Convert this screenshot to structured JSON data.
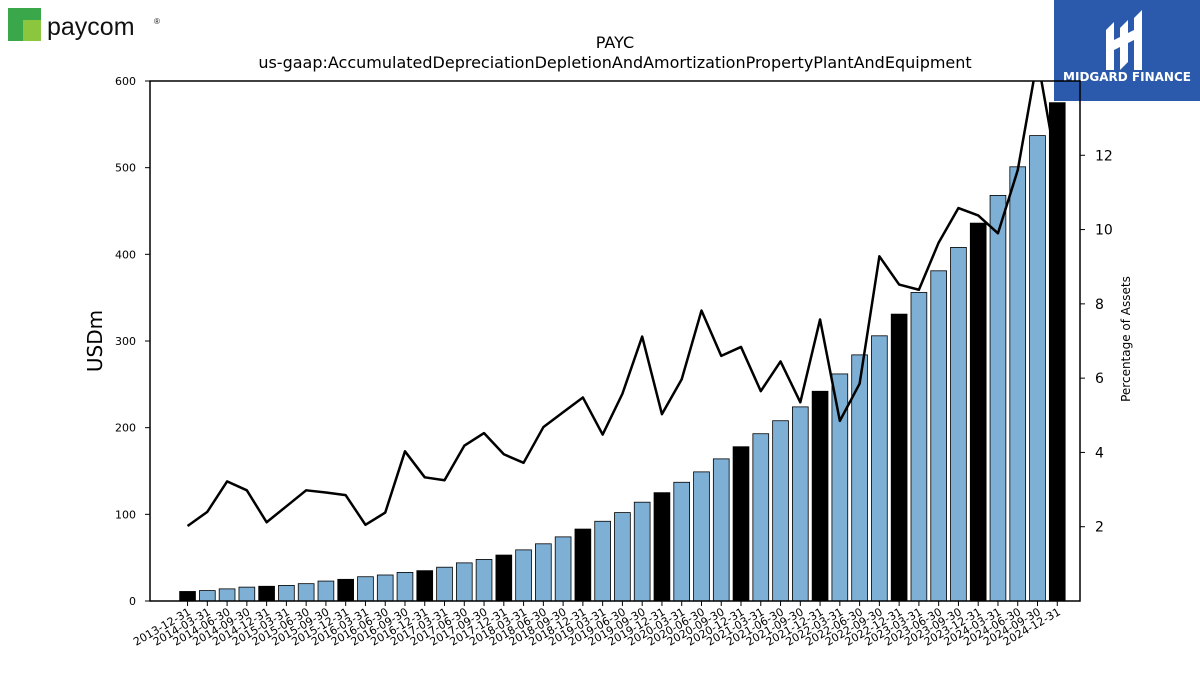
{
  "branding": {
    "left_logo_text": "paycom",
    "left_logo_mark": "®",
    "right_logo_text": "MIDGARD FINANCE",
    "colors": {
      "paycom_green": "#1f8a3c",
      "paycom_dark_green": "#0d5c2a",
      "midgard_blue": "#2b5aad"
    }
  },
  "chart_data": {
    "type": "bar",
    "title": "PAYC",
    "subtitle": "us-gaap:AccumulatedDepreciationDepletionAndAmortizationPropertyPlantAndEquipment",
    "ylabel": "USDm",
    "y2label": "Percentage of Assets",
    "ylim": [
      0,
      600
    ],
    "y2lim": [
      0,
      14
    ],
    "yticks": [
      0,
      100,
      200,
      300,
      400,
      500,
      600
    ],
    "y2ticks": [
      2,
      4,
      6,
      8,
      10,
      12
    ],
    "grid": false,
    "colors": {
      "bar_quarter": "#7eb0d5",
      "bar_year_end": "#000000",
      "bar_edge": "#000000",
      "line": "#000000"
    },
    "categories": [
      "2013-12-31",
      "2014-03-31",
      "2014-06-30",
      "2014-09-30",
      "2014-12-31",
      "2015-03-31",
      "2015-06-30",
      "2015-09-30",
      "2015-12-31",
      "2016-03-31",
      "2016-06-30",
      "2016-09-30",
      "2016-12-31",
      "2017-03-31",
      "2017-06-30",
      "2017-09-30",
      "2017-12-31",
      "2018-03-31",
      "2018-06-30",
      "2018-09-30",
      "2018-12-31",
      "2019-03-31",
      "2019-06-30",
      "2019-09-30",
      "2019-12-31",
      "2020-03-31",
      "2020-06-30",
      "2020-09-30",
      "2020-12-31",
      "2021-03-31",
      "2021-06-30",
      "2021-09-30",
      "2021-12-31",
      "2022-03-31",
      "2022-06-30",
      "2022-09-30",
      "2022-12-31",
      "2023-03-31",
      "2023-06-30",
      "2023-09-30",
      "2023-12-31",
      "2024-03-31",
      "2024-06-30",
      "2024-09-30",
      "2024-12-31"
    ],
    "series": [
      {
        "type": "bar",
        "values": [
          11,
          12,
          14,
          16,
          17,
          18,
          20,
          23,
          25,
          28,
          30,
          33,
          35,
          39,
          44,
          48,
          53,
          59,
          66,
          74,
          83,
          92,
          102,
          114,
          125,
          137,
          149,
          164,
          178,
          193,
          208,
          224,
          242,
          262,
          284,
          306,
          331,
          356,
          381,
          408,
          436,
          468,
          501,
          537,
          575
        ],
        "year_end": [
          true,
          false,
          false,
          false,
          true,
          false,
          false,
          false,
          true,
          false,
          false,
          false,
          true,
          false,
          false,
          false,
          true,
          false,
          false,
          false,
          true,
          false,
          false,
          false,
          true,
          false,
          false,
          false,
          true,
          false,
          false,
          false,
          true,
          false,
          false,
          false,
          true,
          false,
          false,
          false,
          true,
          false,
          false,
          false,
          true
        ]
      },
      {
        "type": "line",
        "axis": "right",
        "values": [
          2.02,
          2.4,
          3.22,
          2.98,
          2.12,
          2.55,
          2.98,
          2.92,
          2.85,
          2.05,
          2.38,
          4.03,
          3.33,
          3.25,
          4.18,
          4.52,
          3.95,
          3.72,
          4.68,
          5.08,
          5.48,
          4.48,
          5.58,
          7.12,
          5.03,
          5.97,
          7.82,
          6.6,
          6.84,
          5.65,
          6.45,
          5.35,
          7.58,
          4.85,
          5.85,
          9.28,
          8.52,
          8.38,
          9.65,
          10.58,
          10.38,
          9.9,
          11.6,
          14.6,
          11.6
        ]
      }
    ]
  }
}
